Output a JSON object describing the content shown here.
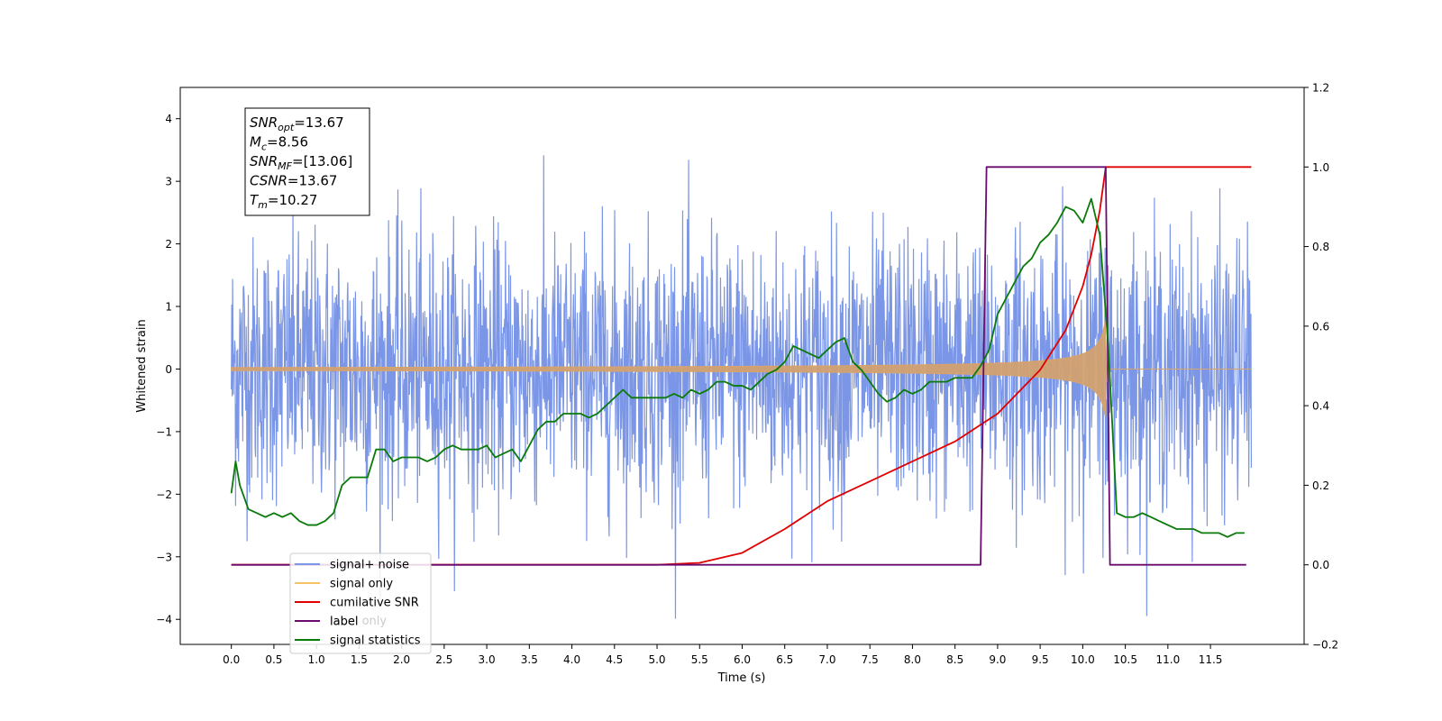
{
  "chart_data": {
    "type": "line",
    "xlabel": "Time (s)",
    "ylabel": "Whitened strain",
    "xlim": [
      -0.6,
      12.6
    ],
    "ylim_left": [
      -4.4,
      4.5
    ],
    "ylim_right": [
      -0.2,
      1.2
    ],
    "x_ticks": [
      0.0,
      0.5,
      1.0,
      1.5,
      2.0,
      2.5,
      3.0,
      3.5,
      4.0,
      4.5,
      5.0,
      5.5,
      6.0,
      6.5,
      7.0,
      7.5,
      8.0,
      8.5,
      9.0,
      9.5,
      10.0,
      10.5,
      11.0,
      11.5
    ],
    "x_tick_labels": [
      "0.0",
      "0.5",
      "1.0",
      "1.5",
      "2.0",
      "2.5",
      "3.0",
      "3.5",
      "4.0",
      "4.5",
      "5.0",
      "5.5",
      "6.0",
      "6.5",
      "7.0",
      "7.5",
      "8.0",
      "8.5",
      "9.0",
      "9.5",
      "10.0",
      "10.5",
      "11.0",
      "11.5"
    ],
    "y_left_ticks": [
      -4,
      -3,
      -2,
      -1,
      0,
      1,
      2,
      3,
      4
    ],
    "y_left_tick_labels": [
      "−4",
      "−3",
      "−2",
      "−1",
      "0",
      "1",
      "2",
      "3",
      "4"
    ],
    "y_right_ticks": [
      -0.2,
      0.0,
      0.2,
      0.4,
      0.6,
      0.8,
      1.0,
      1.2
    ],
    "y_right_tick_labels": [
      "−0.2",
      "0.0",
      "0.2",
      "0.4",
      "0.6",
      "0.8",
      "1.0",
      "1.2"
    ],
    "grid": false,
    "legend_placement": "lower-left",
    "annotation": {
      "lines": [
        {
          "base": "SNR",
          "sub": "opt",
          "rest": "=13.67"
        },
        {
          "base": "M",
          "sub": "c",
          "rest": "=8.56"
        },
        {
          "base": "SNR",
          "sub": "MF",
          "rest": "=[13.06]"
        },
        {
          "base": "CSNR",
          "sub": "",
          "rest": "=13.67"
        },
        {
          "base": "T",
          "sub": "m",
          "rest": "=10.27"
        }
      ]
    },
    "series": [
      {
        "name": "signal+ noise",
        "axis": "left",
        "color": "#7b96e6",
        "description_values": {
          "x_range": [
            0.0,
            11.98
          ],
          "noise_std": 1.0,
          "approx_min": -3.95,
          "approx_max": 4.1
        }
      },
      {
        "name": "signal only",
        "axis": "left",
        "color": "#d2a070",
        "chirp": {
          "t_merge": 10.27,
          "amp_start": 0.0,
          "amp_at_8_8": 0.25,
          "amp_max": 1.0
        }
      },
      {
        "name": "cumilative SNR",
        "axis": "right",
        "color": "#e00000",
        "x": [
          0.0,
          5.0,
          5.5,
          6.0,
          6.5,
          7.0,
          7.5,
          8.0,
          8.5,
          9.0,
          9.5,
          9.8,
          10.0,
          10.1,
          10.2,
          10.27,
          11.98
        ],
        "y": [
          0.0,
          0.0,
          0.005,
          0.03,
          0.09,
          0.16,
          0.21,
          0.26,
          0.31,
          0.38,
          0.49,
          0.59,
          0.7,
          0.78,
          0.89,
          1.0,
          1.0
        ]
      },
      {
        "name": "label",
        "axis": "right",
        "color": "#6a0a6e",
        "x": [
          0.0,
          8.8,
          8.87,
          10.27,
          10.32,
          11.92
        ],
        "y": [
          0.0,
          0.0,
          1.0,
          1.0,
          0.0,
          0.0
        ]
      },
      {
        "name": "label only",
        "axis": "right",
        "color": "#cccccc",
        "hidden_in_plot": true
      },
      {
        "name": "signal statistics",
        "axis": "right",
        "color": "#0a7a0a",
        "x": [
          0.0,
          0.05,
          0.1,
          0.2,
          0.3,
          0.4,
          0.5,
          0.6,
          0.7,
          0.8,
          0.9,
          1.0,
          1.1,
          1.2,
          1.3,
          1.4,
          1.5,
          1.6,
          1.7,
          1.8,
          1.9,
          2.0,
          2.1,
          2.2,
          2.3,
          2.4,
          2.5,
          2.6,
          2.7,
          2.8,
          2.9,
          3.0,
          3.1,
          3.2,
          3.3,
          3.4,
          3.5,
          3.6,
          3.7,
          3.8,
          3.9,
          4.0,
          4.1,
          4.2,
          4.3,
          4.4,
          4.5,
          4.6,
          4.7,
          4.8,
          4.9,
          5.0,
          5.1,
          5.2,
          5.3,
          5.4,
          5.5,
          5.6,
          5.7,
          5.8,
          5.9,
          6.0,
          6.1,
          6.2,
          6.3,
          6.4,
          6.5,
          6.6,
          6.7,
          6.8,
          6.9,
          7.0,
          7.1,
          7.2,
          7.3,
          7.4,
          7.5,
          7.6,
          7.7,
          7.8,
          7.9,
          8.0,
          8.1,
          8.2,
          8.3,
          8.4,
          8.5,
          8.6,
          8.7,
          8.8,
          8.9,
          9.0,
          9.1,
          9.2,
          9.3,
          9.4,
          9.5,
          9.6,
          9.7,
          9.8,
          9.9,
          10.0,
          10.1,
          10.2,
          10.3,
          10.4,
          10.5,
          10.6,
          10.7,
          10.8,
          10.9,
          11.0,
          11.1,
          11.2,
          11.3,
          11.4,
          11.5,
          11.6,
          11.7,
          11.8,
          11.9
        ],
        "y": [
          0.18,
          0.26,
          0.2,
          0.14,
          0.13,
          0.12,
          0.13,
          0.12,
          0.13,
          0.11,
          0.1,
          0.1,
          0.11,
          0.13,
          0.2,
          0.22,
          0.22,
          0.22,
          0.29,
          0.29,
          0.26,
          0.27,
          0.27,
          0.27,
          0.26,
          0.27,
          0.29,
          0.3,
          0.29,
          0.29,
          0.29,
          0.3,
          0.27,
          0.28,
          0.29,
          0.26,
          0.3,
          0.34,
          0.36,
          0.36,
          0.38,
          0.38,
          0.38,
          0.37,
          0.38,
          0.4,
          0.42,
          0.44,
          0.42,
          0.42,
          0.42,
          0.42,
          0.42,
          0.43,
          0.42,
          0.44,
          0.43,
          0.44,
          0.46,
          0.46,
          0.45,
          0.45,
          0.44,
          0.46,
          0.48,
          0.49,
          0.51,
          0.55,
          0.54,
          0.53,
          0.52,
          0.54,
          0.56,
          0.57,
          0.51,
          0.49,
          0.46,
          0.43,
          0.41,
          0.42,
          0.44,
          0.43,
          0.44,
          0.46,
          0.46,
          0.46,
          0.47,
          0.47,
          0.47,
          0.5,
          0.54,
          0.63,
          0.67,
          0.71,
          0.75,
          0.77,
          0.81,
          0.83,
          0.86,
          0.9,
          0.89,
          0.86,
          0.92,
          0.83,
          0.55,
          0.13,
          0.12,
          0.12,
          0.13,
          0.12,
          0.11,
          0.1,
          0.09,
          0.09,
          0.09,
          0.08,
          0.08,
          0.08,
          0.07,
          0.08,
          0.08
        ]
      }
    ],
    "legend_entries": [
      {
        "label": "signal+ noise",
        "color": "#7b96e6"
      },
      {
        "label": "signal only",
        "color": "#f5c266"
      },
      {
        "label": "cumilative SNR",
        "color": "#e00000"
      },
      {
        "label": "label",
        "color": "#6a0a6e"
      },
      {
        "label": "signal statistics",
        "color": "#0a7a0a"
      }
    ]
  }
}
